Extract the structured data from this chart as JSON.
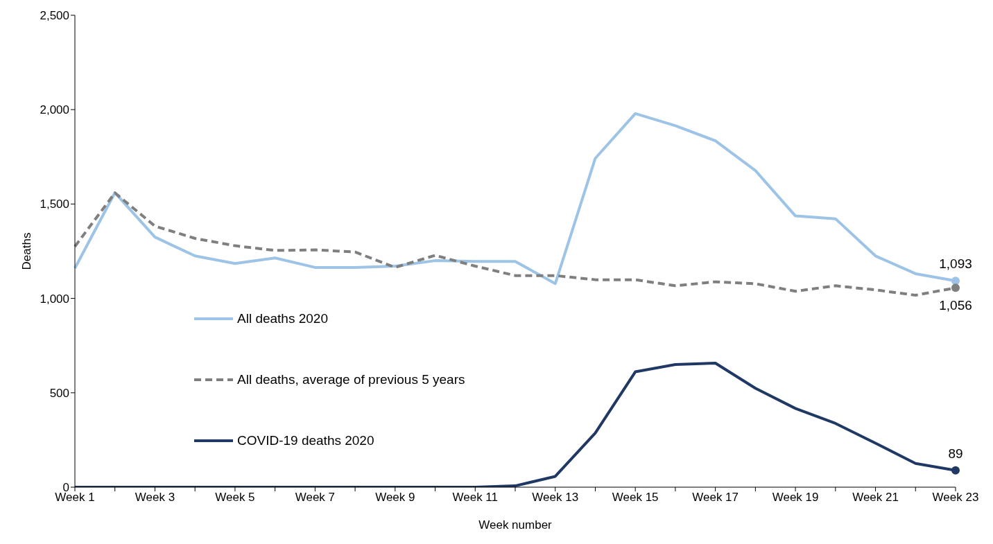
{
  "chart_data": {
    "type": "line",
    "xlabel": "Week number",
    "ylabel": "Deaths",
    "categories": [
      "Week 1",
      null,
      "Week 3",
      null,
      "Week 5",
      null,
      "Week 7",
      null,
      "Week 9",
      null,
      "Week 11",
      null,
      "Week 13",
      null,
      "Week 15",
      null,
      "Week 17",
      null,
      "Week 19",
      null,
      "Week 21",
      null,
      "Week 23"
    ],
    "series": [
      {
        "name": "All deaths 2020",
        "color": "#9dc3e6",
        "line_style": "solid",
        "values": [
          1160,
          1560,
          1325,
          1225,
          1185,
          1214,
          1164,
          1164,
          1171,
          1200,
          1196,
          1196,
          1078,
          1742,
          1979,
          1915,
          1835,
          1677,
          1437,
          1422,
          1225,
          1131,
          1093
        ],
        "value_labels": [
          null,
          null,
          null,
          null,
          null,
          null,
          null,
          null,
          null,
          null,
          null,
          null,
          null,
          null,
          null,
          null,
          null,
          null,
          null,
          null,
          null,
          null,
          "1,093"
        ]
      },
      {
        "name": "All deaths, average of previous 5 years",
        "color": "#7f7f7f",
        "line_style": "dashed",
        "values": [
          1275,
          1559,
          1383,
          1318,
          1279,
          1254,
          1257,
          1246,
          1164,
          1228,
          1171,
          1121,
          1121,
          1099,
          1099,
          1067,
          1088,
          1078,
          1038,
          1067,
          1045,
          1017,
          1056
        ],
        "value_labels": [
          null,
          null,
          null,
          null,
          null,
          null,
          null,
          null,
          null,
          null,
          null,
          null,
          null,
          null,
          null,
          null,
          null,
          null,
          null,
          null,
          null,
          null,
          "1,056"
        ]
      },
      {
        "name": "COVID-19 deaths 2020",
        "color": "#203864",
        "line_style": "solid",
        "values": [
          0,
          0,
          0,
          0,
          0,
          0,
          0,
          0,
          0,
          0,
          0,
          7,
          57,
          287,
          611,
          650,
          657,
          524,
          417,
          338,
          233,
          126,
          89
        ],
        "value_labels": [
          null,
          null,
          null,
          null,
          null,
          null,
          null,
          null,
          null,
          null,
          null,
          null,
          null,
          null,
          null,
          null,
          null,
          null,
          null,
          null,
          null,
          null,
          "89"
        ]
      }
    ],
    "ylim": [
      0,
      2500
    ],
    "yticks": [
      0,
      500,
      {
        "value": 1000,
        "label": "1,000"
      },
      {
        "value": 1500,
        "label": "1,500"
      },
      {
        "value": 2000,
        "label": "2,000"
      },
      {
        "value": 2500,
        "label": "2,500"
      }
    ],
    "grid": false,
    "legend": "left"
  }
}
